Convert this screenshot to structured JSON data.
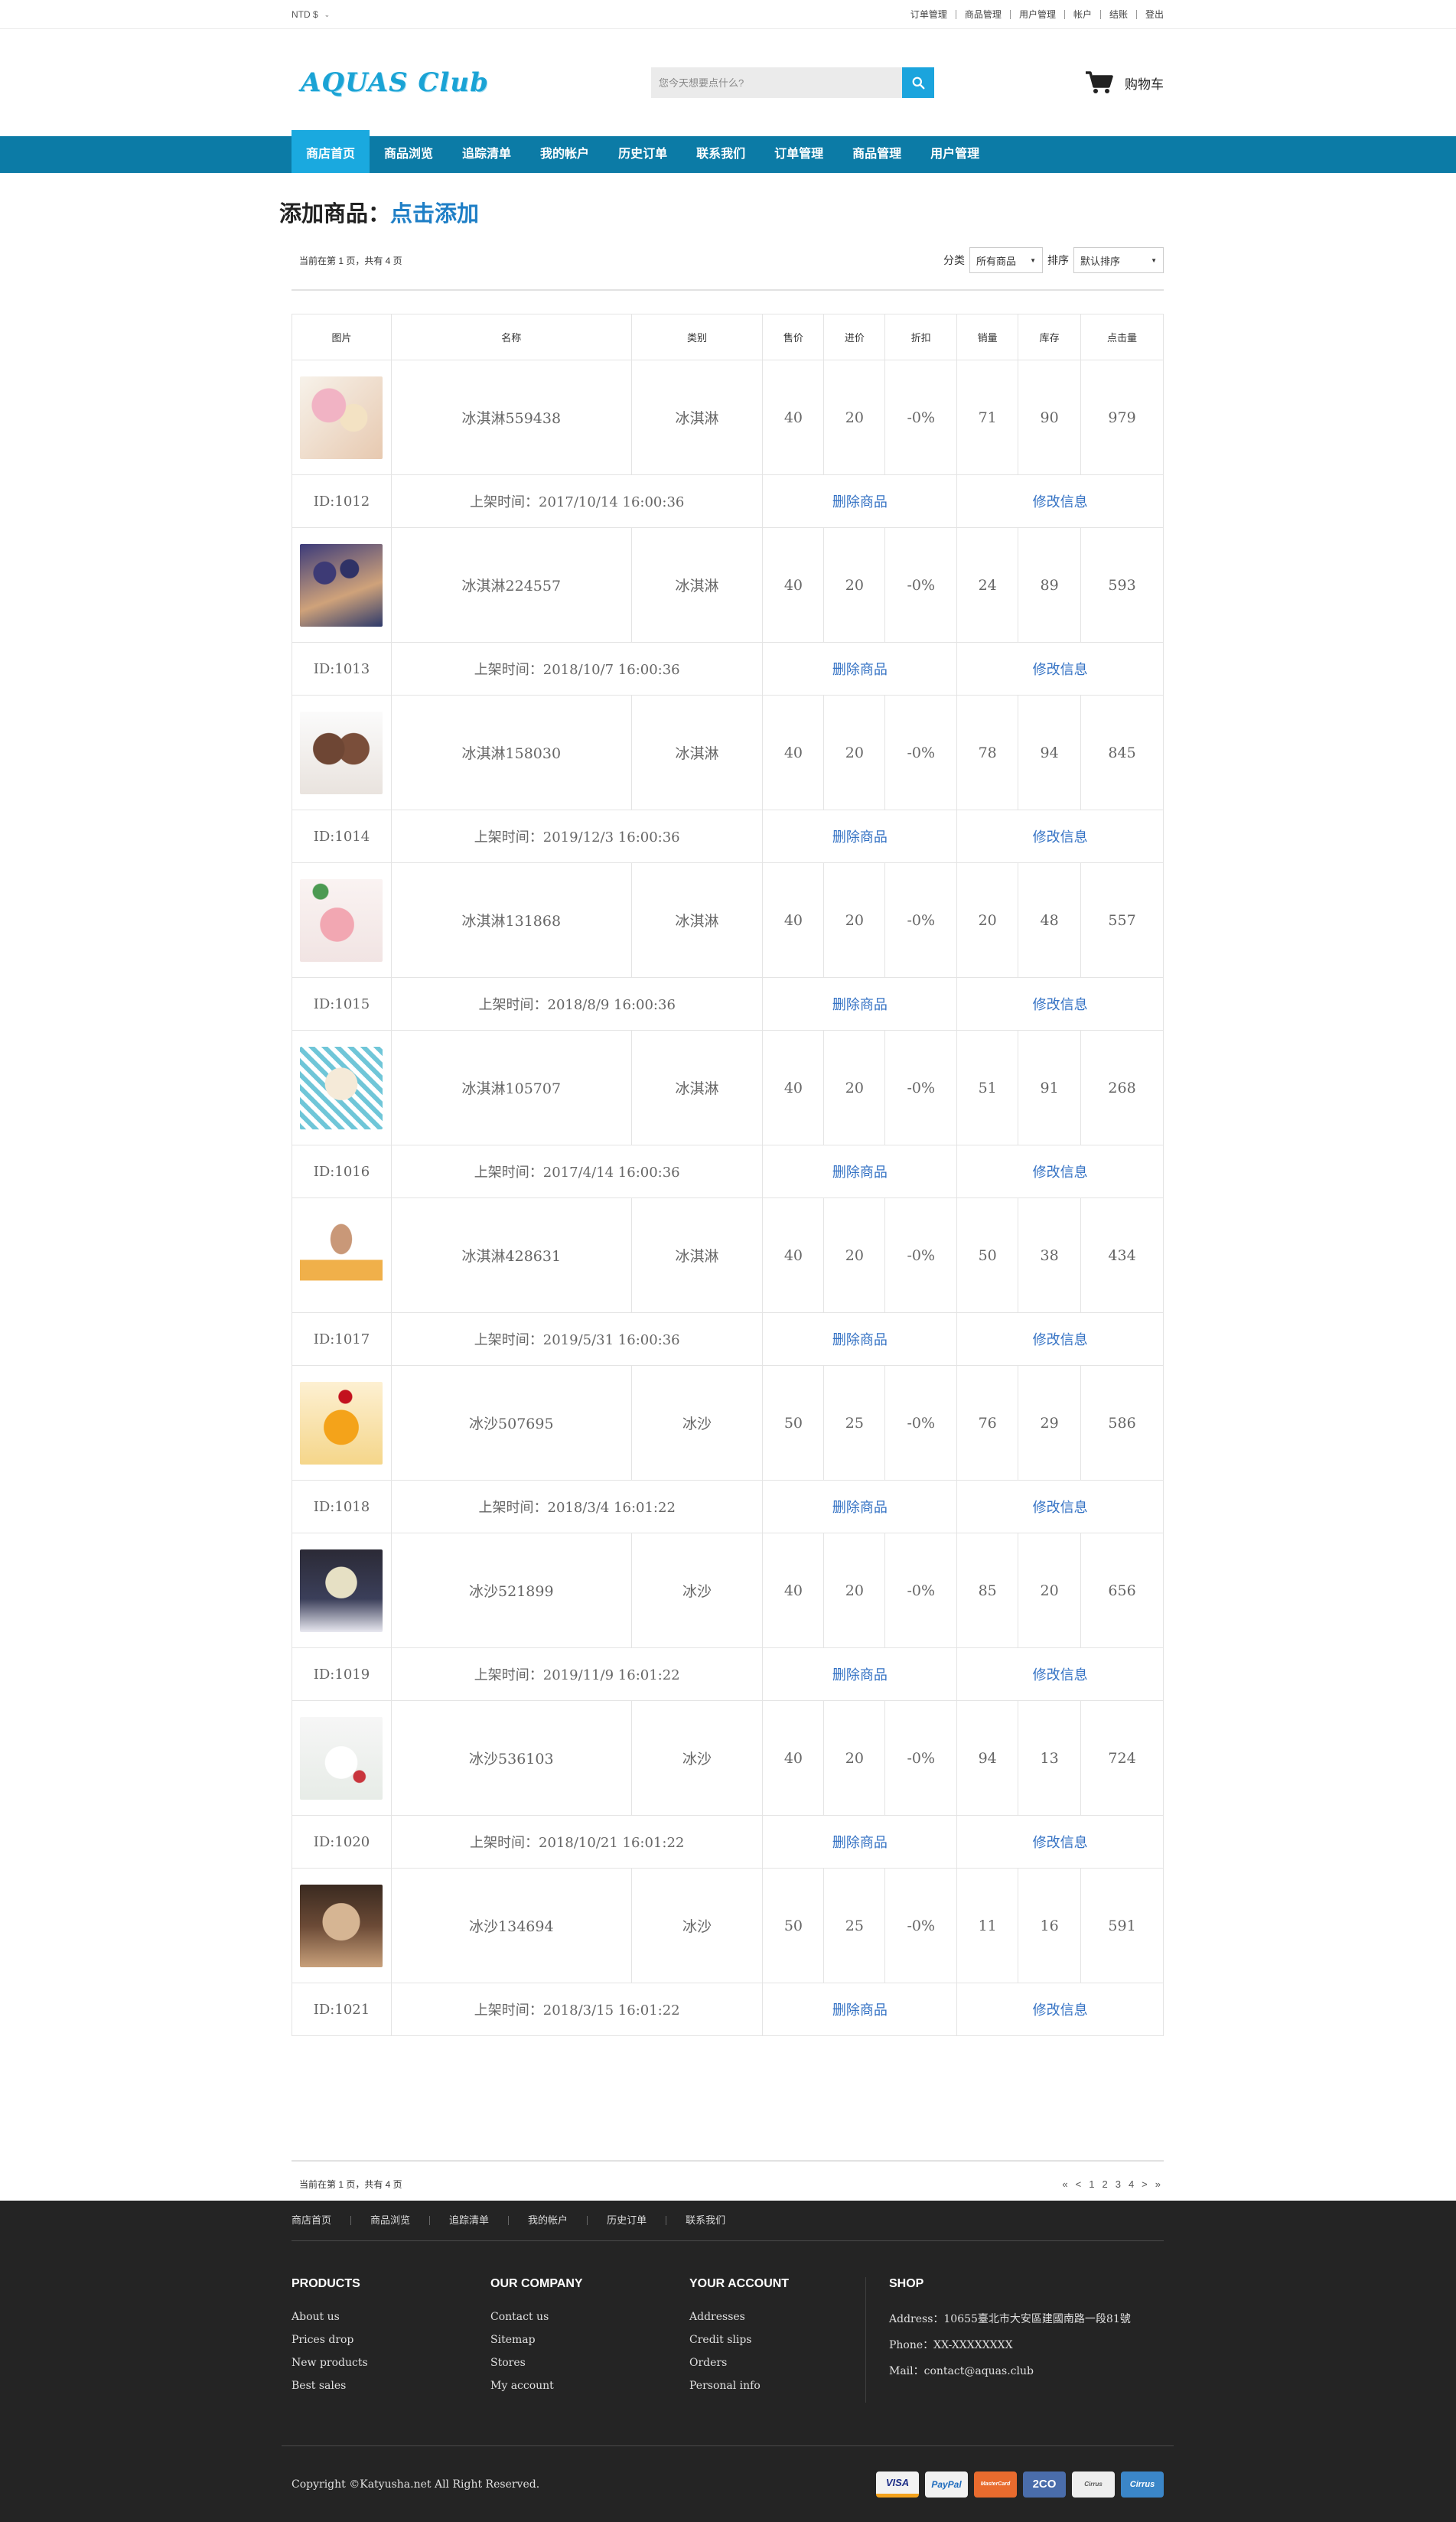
{
  "topbar": {
    "currency": "NTD $",
    "links": [
      "订单管理",
      "商品管理",
      "用户管理",
      "帐户",
      "结账",
      "登出"
    ]
  },
  "header": {
    "logo_text": "AQUAS Club",
    "search_placeholder": "您今天想要点什么?",
    "cart_label": "购物车"
  },
  "nav": {
    "items": [
      "商店首页",
      "商品浏览",
      "追踪清单",
      "我的帐户",
      "历史订单",
      "联系我们",
      "订单管理",
      "商品管理",
      "用户管理"
    ],
    "active_index": 0
  },
  "main": {
    "title_prefix": "添加商品：",
    "title_link": "点击添加",
    "page_info": "当前在第 1 页，共有 4 页",
    "filter_category_label": "分类",
    "filter_category_value": "所有商品",
    "filter_sort_label": "排序",
    "filter_sort_value": "默认排序",
    "delete_label": "删除商品",
    "edit_label": "修改信息",
    "listed_prefix": "上架时间："
  },
  "table": {
    "headers": [
      "图片",
      "名称",
      "类别",
      "售价",
      "进价",
      "折扣",
      "销量",
      "库存",
      "点击量"
    ],
    "rows": [
      {
        "name": "冰淇淋559438",
        "category": "冰淇淋",
        "price": "40",
        "cost": "20",
        "discount": "-0%",
        "sales": "71",
        "stock": "90",
        "clicks": "979",
        "id": "ID:1012",
        "listed": "2017/10/14 16:00:36",
        "image": "ice-cream-scoops-image"
      },
      {
        "name": "冰淇淋224557",
        "category": "冰淇淋",
        "price": "40",
        "cost": "20",
        "discount": "-0%",
        "sales": "24",
        "stock": "89",
        "clicks": "593",
        "id": "ID:1013",
        "listed": "2018/10/7 16:00:36",
        "image": "blueberry-dessert-image"
      },
      {
        "name": "冰淇淋158030",
        "category": "冰淇淋",
        "price": "40",
        "cost": "20",
        "discount": "-0%",
        "sales": "78",
        "stock": "94",
        "clicks": "845",
        "id": "ID:1014",
        "listed": "2019/12/3 16:00:36",
        "image": "chocolate-scoops-image"
      },
      {
        "name": "冰淇淋131868",
        "category": "冰淇淋",
        "price": "40",
        "cost": "20",
        "discount": "-0%",
        "sales": "20",
        "stock": "48",
        "clicks": "557",
        "id": "ID:1015",
        "listed": "2018/8/9 16:00:36",
        "image": "strawberry-bowl-image"
      },
      {
        "name": "冰淇淋105707",
        "category": "冰淇淋",
        "price": "40",
        "cost": "20",
        "discount": "-0%",
        "sales": "51",
        "stock": "91",
        "clicks": "268",
        "id": "ID:1016",
        "listed": "2017/4/14 16:00:36",
        "image": "sprinkle-sundae-image"
      },
      {
        "name": "冰淇淋428631",
        "category": "冰淇淋",
        "price": "40",
        "cost": "20",
        "discount": "-0%",
        "sales": "50",
        "stock": "38",
        "clicks": "434",
        "id": "ID:1017",
        "listed": "2019/5/31 16:00:36",
        "image": "soft-serve-cone-image"
      },
      {
        "name": "冰沙507695",
        "category": "冰沙",
        "price": "50",
        "cost": "25",
        "discount": "-0%",
        "sales": "76",
        "stock": "29",
        "clicks": "586",
        "id": "ID:1018",
        "listed": "2018/3/4 16:01:22",
        "image": "mango-jelly-image"
      },
      {
        "name": "冰沙521899",
        "category": "冰沙",
        "price": "40",
        "cost": "20",
        "discount": "-0%",
        "sales": "85",
        "stock": "20",
        "clicks": "656",
        "id": "ID:1019",
        "listed": "2019/11/9 16:01:22",
        "image": "pistachio-cup-image"
      },
      {
        "name": "冰沙536103",
        "category": "冰沙",
        "price": "40",
        "cost": "20",
        "discount": "-0%",
        "sales": "94",
        "stock": "13",
        "clicks": "724",
        "id": "ID:1020",
        "listed": "2018/10/21 16:01:22",
        "image": "milk-smoothie-image"
      },
      {
        "name": "冰沙134694",
        "category": "冰沙",
        "price": "50",
        "cost": "25",
        "discount": "-0%",
        "sales": "11",
        "stock": "16",
        "clicks": "591",
        "id": "ID:1021",
        "listed": "2018/3/15 16:01:22",
        "image": "coffee-frappe-image"
      }
    ]
  },
  "pager": {
    "items": [
      "«",
      "<",
      "1",
      "2",
      "3",
      "4",
      ">",
      "»"
    ]
  },
  "footer": {
    "links": [
      "商店首页",
      "商品浏览",
      "追踪清单",
      "我的帐户",
      "历史订单",
      "联系我们"
    ],
    "columns": [
      {
        "title": "PRODUCTS",
        "items": [
          "About us",
          "Prices drop",
          "New products",
          "Best sales"
        ]
      },
      {
        "title": "OUR COMPANY",
        "items": [
          "Contact us",
          "Sitemap",
          "Stores",
          "My account"
        ]
      },
      {
        "title": "YOUR ACCOUNT",
        "items": [
          "Addresses",
          "Credit slips",
          "Orders",
          "Personal info"
        ]
      }
    ],
    "shop_title": "SHOP",
    "shop_lines": [
      "Address：10655臺北市大安區建國南路一段81號",
      "Phone：XX-XXXXXXXX",
      "Mail：contact@aquas.club"
    ],
    "copyright": "Copyright ©Katyusha.net All Right Reserved.",
    "payments": [
      "VISA",
      "PayPal",
      "MasterCard",
      "2CO",
      "Cirrus",
      "Cirrus"
    ]
  },
  "colors": {
    "nav": "#0c7ba6",
    "nav_active": "#1aa9df",
    "link": "#3472c4",
    "footer": "#242424"
  }
}
